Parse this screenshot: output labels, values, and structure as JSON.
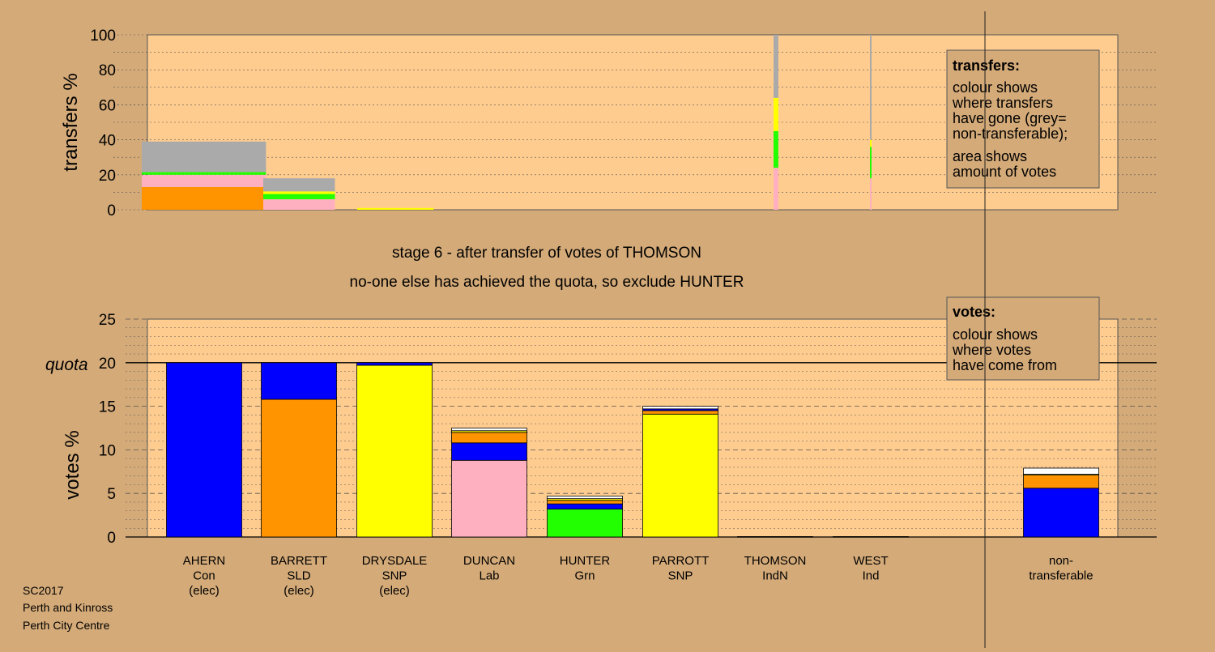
{
  "colors": {
    "background": "#d4aa78",
    "plot_area": "#ffcc8f",
    "Con": "#0000ff",
    "SLD": "#ff9300",
    "SNP": "#ffff00",
    "Lab": "#ffb0c0",
    "Grn": "#22ff00",
    "Ind": "#ffffff",
    "IndN": "#000000",
    "non_transferable": "#aaaaaa"
  },
  "stage_text": {
    "line1": "stage 6 - after transfer of votes of THOMSON",
    "line2": "no-one else has achieved the quota, so exclude HUNTER"
  },
  "footer": [
    "SC2017",
    "Perth and Kinross",
    "Perth City Centre"
  ],
  "transfers_legend": {
    "title": "transfers:",
    "lines": [
      "colour shows",
      "where transfers",
      "have gone (grey=",
      "non-transferable);",
      "area shows",
      "amount of votes"
    ]
  },
  "votes_legend": {
    "title": "votes:",
    "lines": [
      "colour shows",
      "where votes",
      "have come from"
    ]
  },
  "chart_data": [
    {
      "type": "bar",
      "title": "transfers",
      "ylabel": "transfers %",
      "ylim": [
        0,
        100
      ],
      "yticks": [
        0,
        20,
        40,
        60,
        80,
        100
      ],
      "grid": true,
      "note": "stacked transfer percentages; bar width proportional to votes transferred",
      "bars": [
        {
          "candidate": "AHERN",
          "relative_width": 1.3,
          "segments": [
            {
              "party": "SLD",
              "value": 13
            },
            {
              "party": "Lab",
              "value": 7
            },
            {
              "party": "Grn",
              "value": 1.5
            },
            {
              "party": "non_transferable",
              "value": 17.5
            }
          ]
        },
        {
          "candidate": "BARRETT",
          "relative_width": 0.75,
          "segments": [
            {
              "party": "Lab",
              "value": 6
            },
            {
              "party": "Grn",
              "value": 3
            },
            {
              "party": "SNP",
              "value": 1.5
            },
            {
              "party": "non_transferable",
              "value": 7.5
            }
          ]
        },
        {
          "candidate": "DRYSDALE",
          "relative_width": 0.8,
          "segments": [
            {
              "party": "SNP",
              "value": 1
            }
          ]
        },
        {
          "candidate": "THOMSON",
          "relative_width": 0.05,
          "segments": [
            {
              "party": "Lab",
              "value": 24
            },
            {
              "party": "Grn",
              "value": 21
            },
            {
              "party": "SNP",
              "value": 19
            },
            {
              "party": "non_transferable",
              "value": 36
            }
          ]
        },
        {
          "candidate": "WEST",
          "relative_width": 0.015,
          "segments": [
            {
              "party": "Lab",
              "value": 18
            },
            {
              "party": "Grn",
              "value": 18
            },
            {
              "party": "SNP",
              "value": 4
            },
            {
              "party": "non_transferable",
              "value": 60
            }
          ]
        }
      ]
    },
    {
      "type": "bar",
      "title": "votes",
      "ylabel": "votes %",
      "ylim": [
        0,
        25
      ],
      "yticks": [
        0,
        5,
        10,
        15,
        20,
        25
      ],
      "quota": 20,
      "quota_label": "quota",
      "grid": true,
      "categories": [
        {
          "name": "AHERN",
          "party": "Con",
          "status": "(elec)"
        },
        {
          "name": "BARRETT",
          "party": "SLD",
          "status": "(elec)"
        },
        {
          "name": "DRYSDALE",
          "party": "SNP",
          "status": "(elec)"
        },
        {
          "name": "DUNCAN",
          "party": "Lab",
          "status": ""
        },
        {
          "name": "HUNTER",
          "party": "Grn",
          "status": ""
        },
        {
          "name": "PARROTT",
          "party": "SNP",
          "status": ""
        },
        {
          "name": "THOMSON",
          "party": "IndN",
          "status": ""
        },
        {
          "name": "WEST",
          "party": "Ind",
          "status": ""
        }
      ],
      "nontransferable_label": [
        "non-",
        "transferable"
      ],
      "stacks": [
        [
          {
            "party": "Con",
            "value": 20
          }
        ],
        [
          {
            "party": "SLD",
            "value": 15.8
          },
          {
            "party": "Con",
            "value": 4.2
          }
        ],
        [
          {
            "party": "SNP",
            "value": 19.7
          },
          {
            "party": "Con",
            "value": 0.3
          }
        ],
        [
          {
            "party": "Lab",
            "value": 8.8
          },
          {
            "party": "Con",
            "value": 2.0
          },
          {
            "party": "SLD",
            "value": 1.2
          },
          {
            "party": "SNP",
            "value": 0.2
          },
          {
            "party": "Ind",
            "value": 0.3
          }
        ],
        [
          {
            "party": "Grn",
            "value": 3.2
          },
          {
            "party": "Con",
            "value": 0.6
          },
          {
            "party": "SLD",
            "value": 0.4
          },
          {
            "party": "SNP",
            "value": 0.2
          },
          {
            "party": "Ind",
            "value": 0.3
          }
        ],
        [
          {
            "party": "SNP",
            "value": 14.1
          },
          {
            "party": "SLD",
            "value": 0.4
          },
          {
            "party": "Con",
            "value": 0.2
          },
          {
            "party": "Ind",
            "value": 0.3
          }
        ],
        [
          {
            "party": "IndN",
            "value": 0.05
          }
        ],
        [
          {
            "party": "Ind",
            "value": 0.05
          }
        ]
      ],
      "nontransferable": [
        {
          "party": "Con",
          "value": 5.6
        },
        {
          "party": "SLD",
          "value": 1.5
        },
        {
          "party": "SNP",
          "value": 0.1
        },
        {
          "party": "Ind",
          "value": 0.7
        }
      ]
    }
  ]
}
